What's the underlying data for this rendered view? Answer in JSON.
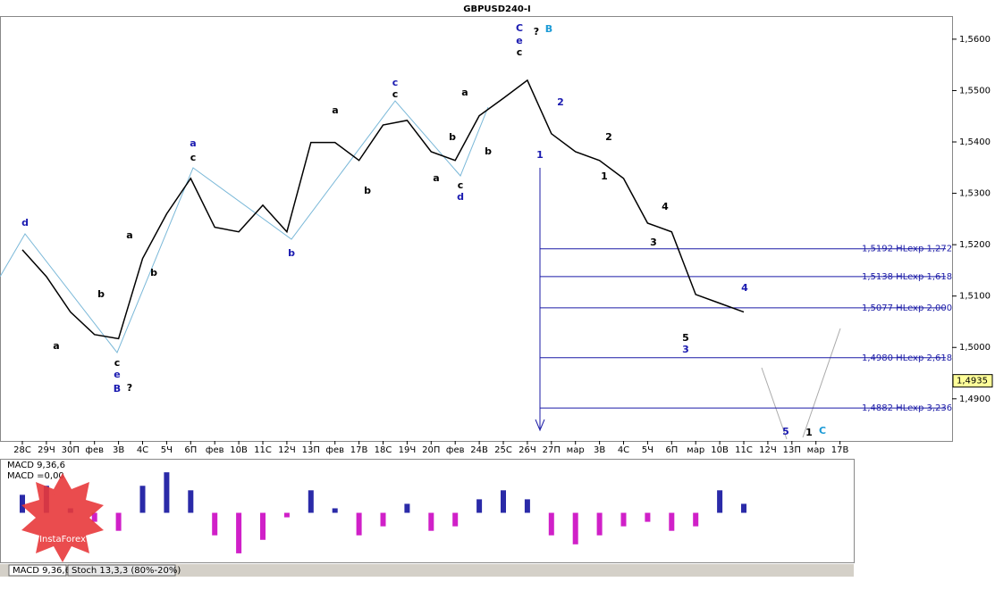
{
  "chart_data": {
    "type": "line",
    "title": "GBPUSD240-I",
    "categories": [
      "28С",
      "29Ч",
      "30П",
      "фев",
      "3В",
      "4С",
      "5Ч",
      "6П",
      "фев",
      "10В",
      "11С",
      "12Ч",
      "13П",
      "фев",
      "17В",
      "18С",
      "19Ч",
      "20П",
      "фев",
      "24В",
      "25С",
      "26Ч",
      "27П",
      "мар",
      "3В",
      "4С",
      "5Ч",
      "6П",
      "мар",
      "10В",
      "11С",
      "12Ч",
      "13П",
      "мар",
      "17В"
    ],
    "series": [
      {
        "name": "GBPUSD",
        "color": "#000000",
        "values": [
          1.519,
          1.5138,
          1.5069,
          1.5025,
          1.5017,
          1.5173,
          1.526,
          1.5329,
          1.5234,
          1.5225,
          1.5277,
          1.5225,
          1.5399,
          1.5399,
          1.5364,
          1.5433,
          1.5442,
          1.5381,
          1.5364,
          1.5451,
          1.5485,
          1.552,
          1.5416,
          1.5381,
          1.5364,
          1.5329,
          1.5242,
          1.5225,
          1.5103,
          1.5086,
          1.5069,
          null,
          null,
          null,
          null
        ]
      }
    ],
    "ylim": [
      1.4818,
      1.5645
    ],
    "yticks": [
      {
        "value": 1.49,
        "label": "1,4900"
      },
      {
        "value": 1.5,
        "label": "1,5000"
      },
      {
        "value": 1.51,
        "label": "1,5100"
      },
      {
        "value": 1.52,
        "label": "1,5200"
      },
      {
        "value": 1.53,
        "label": "1,5300"
      },
      {
        "value": 1.54,
        "label": "1,5400"
      },
      {
        "value": 1.55,
        "label": "1,5500"
      },
      {
        "value": 1.56,
        "label": "1,5600"
      }
    ],
    "last_price": {
      "value": 1.4935,
      "label": "1,4935"
    },
    "levels": [
      {
        "value": 1.5192,
        "label": "1,5192 HLexp 1,272"
      },
      {
        "value": 1.5138,
        "label": "1,5138 HLexp 1,618"
      },
      {
        "value": 1.5077,
        "label": "1,5077 HLexp 2,000"
      },
      {
        "value": 1.498,
        "label": "1,4980 HLexp 2,618"
      },
      {
        "value": 1.4882,
        "label": "1,4882 HLexp 3,236"
      }
    ],
    "level_color": "#1a1aa6",
    "wave_labels": [
      {
        "text": "d",
        "color": "#1a1ab0"
      },
      {
        "text": "a",
        "color": "#000000"
      },
      {
        "text": "b",
        "color": "#000000"
      },
      {
        "text": "c",
        "color": "#000000"
      },
      {
        "text": "e",
        "color": "#1a1ab0"
      },
      {
        "text": "B",
        "color": "#1a1ab0"
      },
      {
        "text": "?",
        "color": "#000000"
      },
      {
        "text": "a",
        "color": "#000000"
      },
      {
        "text": "b",
        "color": "#000000"
      },
      {
        "text": "c",
        "color": "#000000"
      },
      {
        "text": "a",
        "color": "#1a1ab0"
      },
      {
        "text": "b",
        "color": "#1a1ab0"
      },
      {
        "text": "a",
        "color": "#000000"
      },
      {
        "text": "b",
        "color": "#000000"
      },
      {
        "text": "c",
        "color": "#000000"
      },
      {
        "text": "c",
        "color": "#1a1ab0"
      },
      {
        "text": "a",
        "color": "#000000"
      },
      {
        "text": "b",
        "color": "#000000"
      },
      {
        "text": "c",
        "color": "#000000"
      },
      {
        "text": "d",
        "color": "#1a1ab0"
      },
      {
        "text": "b",
        "color": "#000000"
      },
      {
        "text": "a",
        "color": "#000000"
      },
      {
        "text": "c",
        "color": "#000000"
      },
      {
        "text": "e",
        "color": "#1a1ab0"
      },
      {
        "text": "C",
        "color": "#1a1ab0"
      },
      {
        "text": "?",
        "color": "#000000"
      },
      {
        "text": "B",
        "color": "#1a9ad6"
      },
      {
        "text": "2",
        "color": "#1a1ab0"
      },
      {
        "text": "1",
        "color": "#1a1ab0"
      },
      {
        "text": "2",
        "color": "#000000"
      },
      {
        "text": "1",
        "color": "#000000"
      },
      {
        "text": "4",
        "color": "#000000"
      },
      {
        "text": "3",
        "color": "#000000"
      },
      {
        "text": "4",
        "color": "#1a1ab0"
      },
      {
        "text": "5",
        "color": "#000000"
      },
      {
        "text": "3",
        "color": "#1a1ab0"
      },
      {
        "text": "5",
        "color": "#1a1ab0"
      },
      {
        "text": "1",
        "color": "#000000"
      },
      {
        "text": "C",
        "color": "#1a9ad6"
      }
    ],
    "macd": {
      "label": "MACD 9,36,6",
      "value_label": "MACD =0,00",
      "ylim": [
        -0.0055,
        0.006
      ],
      "up_color": "#2a2aa8",
      "down_color": "#d020c8",
      "values": [
        0.002,
        0.003,
        0.0005,
        -0.001,
        -0.002,
        0.003,
        0.0045,
        0.0025,
        -0.0025,
        -0.0045,
        -0.003,
        -0.0005,
        0.0025,
        0.0005,
        -0.0025,
        -0.0015,
        0.001,
        -0.002,
        -0.0015,
        0.0015,
        0.0025,
        0.0015,
        -0.0025,
        -0.0035,
        -0.0025,
        -0.0015,
        -0.001,
        -0.002,
        -0.0015,
        0.0025,
        0.001,
        null,
        null,
        null,
        null
      ]
    },
    "tabs": [
      "MACD 9,36,6",
      "Stoch 13,3,3 (80%-20%)"
    ],
    "logo": "InstaForex"
  }
}
